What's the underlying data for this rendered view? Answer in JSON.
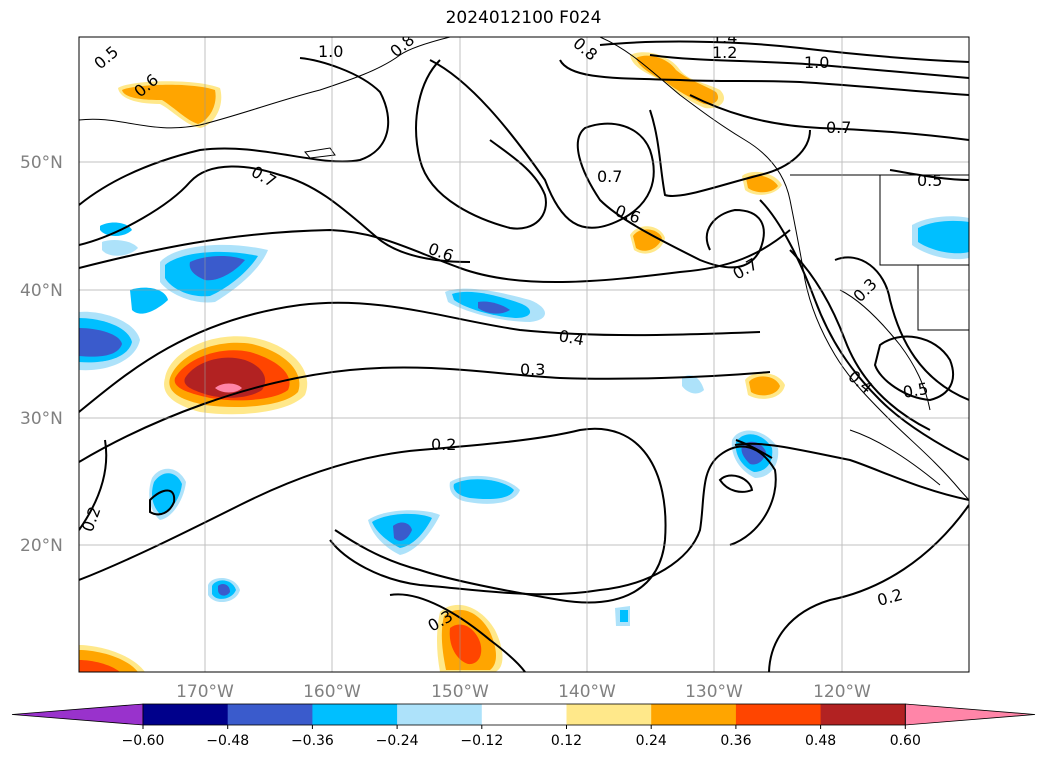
{
  "title": "2024012100 F024",
  "lat_labels": [
    "50°N",
    "40°N",
    "30°N",
    "20°N"
  ],
  "lon_labels": [
    "170°W",
    "160°W",
    "150°W",
    "140°W",
    "130°W",
    "120°W"
  ],
  "contour_labels": [
    "0.5",
    "0.6",
    "1.0",
    "0.8",
    "1.4",
    "1.2",
    "1.0",
    "0.7",
    "0.5",
    "0.7",
    "0.7",
    "0.6",
    "0.6",
    "0.7",
    "0.3",
    "0.4",
    "0.3",
    "0.2",
    "0.2",
    "0.2",
    "0.3",
    "0.4",
    "0.5",
    "0.8"
  ],
  "colorbar": {
    "ticks": [
      "−0.60",
      "−0.48",
      "−0.36",
      "−0.24",
      "−0.12",
      "0.12",
      "0.24",
      "0.36",
      "0.48",
      "0.60"
    ],
    "colors": [
      "#9932CC",
      "#00008B",
      "#3A5BCC",
      "#00BFFF",
      "#ADE2FA",
      "#FFFFFF",
      "#FFE88A",
      "#FFA500",
      "#FF4500",
      "#B22222",
      "#FF85A8"
    ]
  }
}
